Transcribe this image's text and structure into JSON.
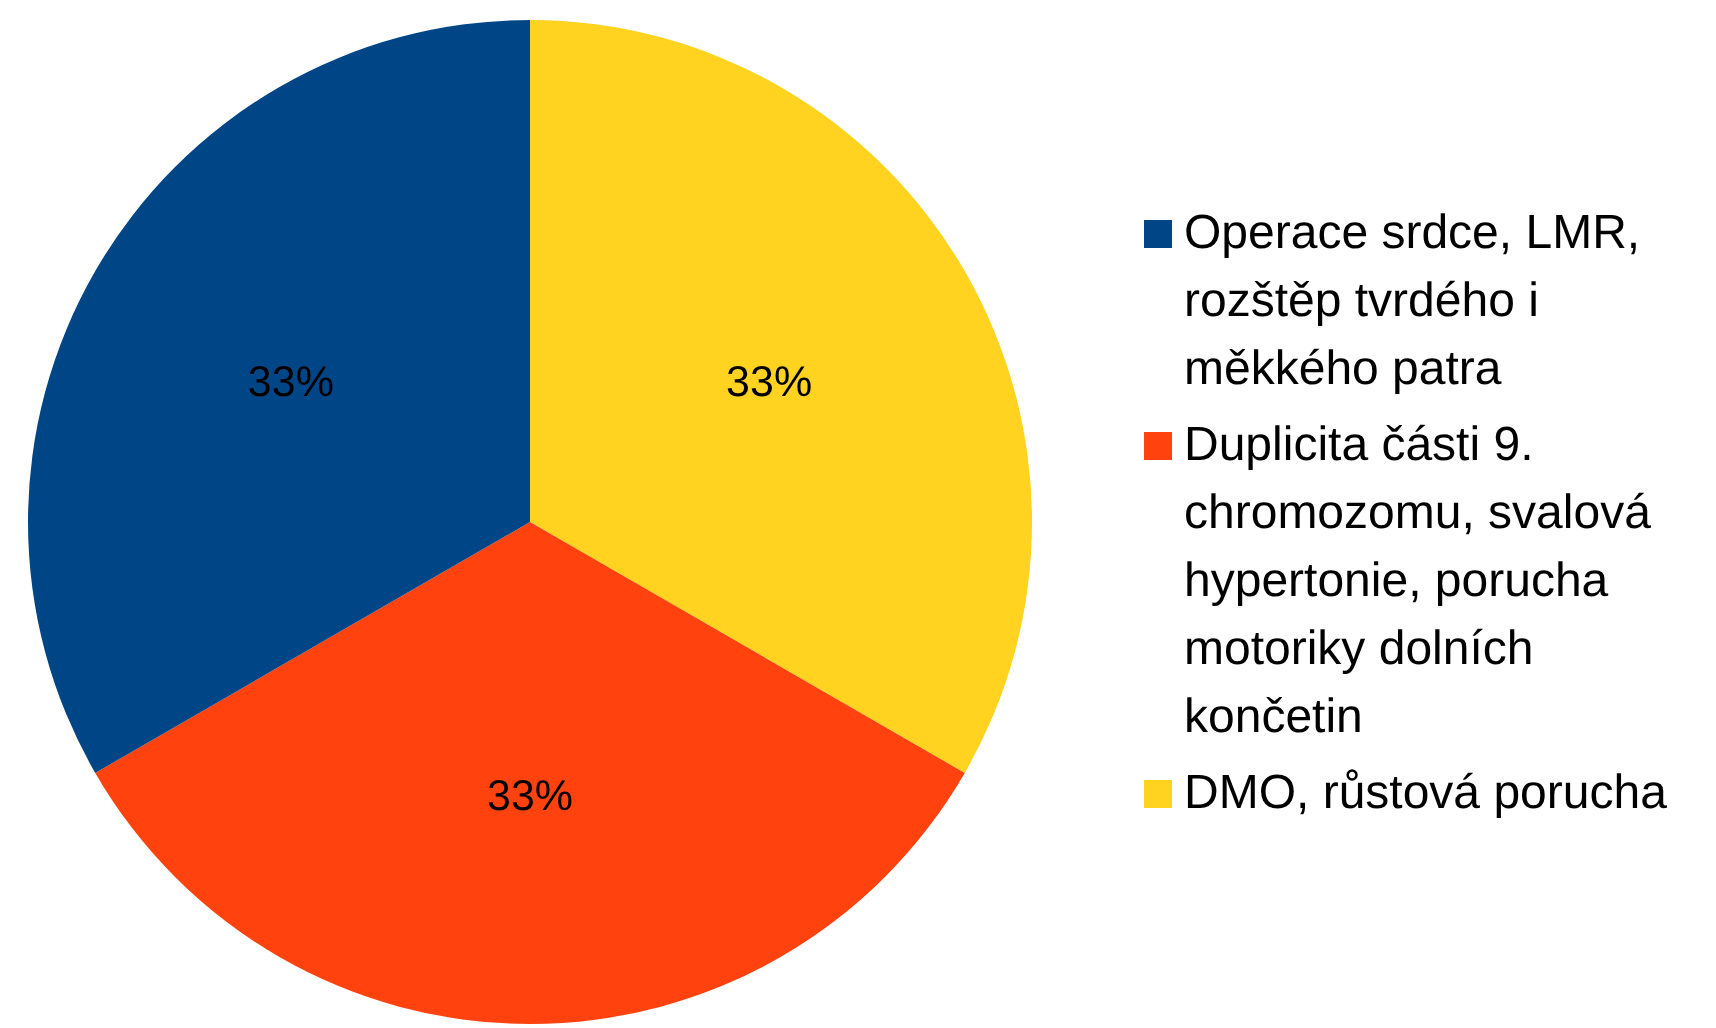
{
  "chart_data": {
    "type": "pie",
    "categories": [
      "Operace srdce, LMR, rozštěp tvrdého i měkkého patra",
      "Duplicita části 9. chromozomu, svalová hypertonie, porucha motoriky dolních končetin",
      "DMO, růstová porucha"
    ],
    "values": [
      33,
      33,
      33
    ],
    "colors": [
      "#004586",
      "#ff420e",
      "#ffd320"
    ],
    "value_labels": [
      "33%",
      "33%",
      "33%"
    ],
    "legend": "right"
  }
}
